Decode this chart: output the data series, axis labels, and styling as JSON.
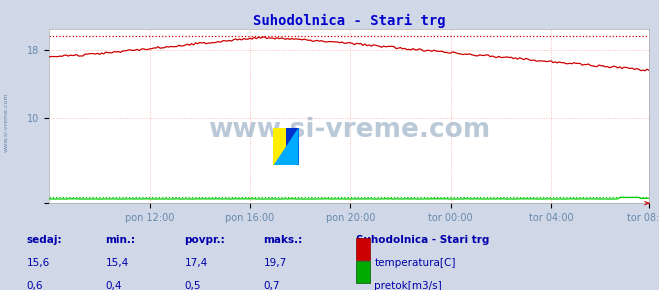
{
  "title": "Suhodolnica - Stari trg",
  "title_color": "#0000cc",
  "bg_color": "#d0d8e8",
  "plot_bg_color": "#ffffff",
  "grid_color": "#ffaaaa",
  "xticklabels": [
    "pon 12:00",
    "pon 16:00",
    "pon 20:00",
    "tor 00:00",
    "tor 04:00",
    "tor 08:00"
  ],
  "yticks_labels": [
    "",
    "10",
    "18"
  ],
  "yticks_vals": [
    0,
    10,
    18
  ],
  "ylim": [
    0,
    20.5
  ],
  "xlim": [
    0,
    287
  ],
  "temp_color": "#cc0000",
  "flow_color": "#00cc00",
  "watermark": "www.si-vreme.com",
  "watermark_color": "#6688aa",
  "sedaj_label": "sedaj:",
  "min_label": "min.:",
  "povpr_label": "povpr.:",
  "maks_label": "maks.:",
  "station_label": "Suhodolnica - Stari trg",
  "temp_sedaj": "15,6",
  "temp_min": "15,4",
  "temp_povpr": "17,4",
  "temp_maks": "19,7",
  "flow_sedaj": "0,6",
  "flow_min": "0,4",
  "flow_povpr": "0,5",
  "flow_maks": "0,7",
  "temp_legend": "temperatura[C]",
  "flow_legend": "pretok[m3/s]",
  "temp_max_y": 19.7,
  "flow_max_y": 0.7,
  "n_points": 288,
  "label_color": "#0000aa"
}
